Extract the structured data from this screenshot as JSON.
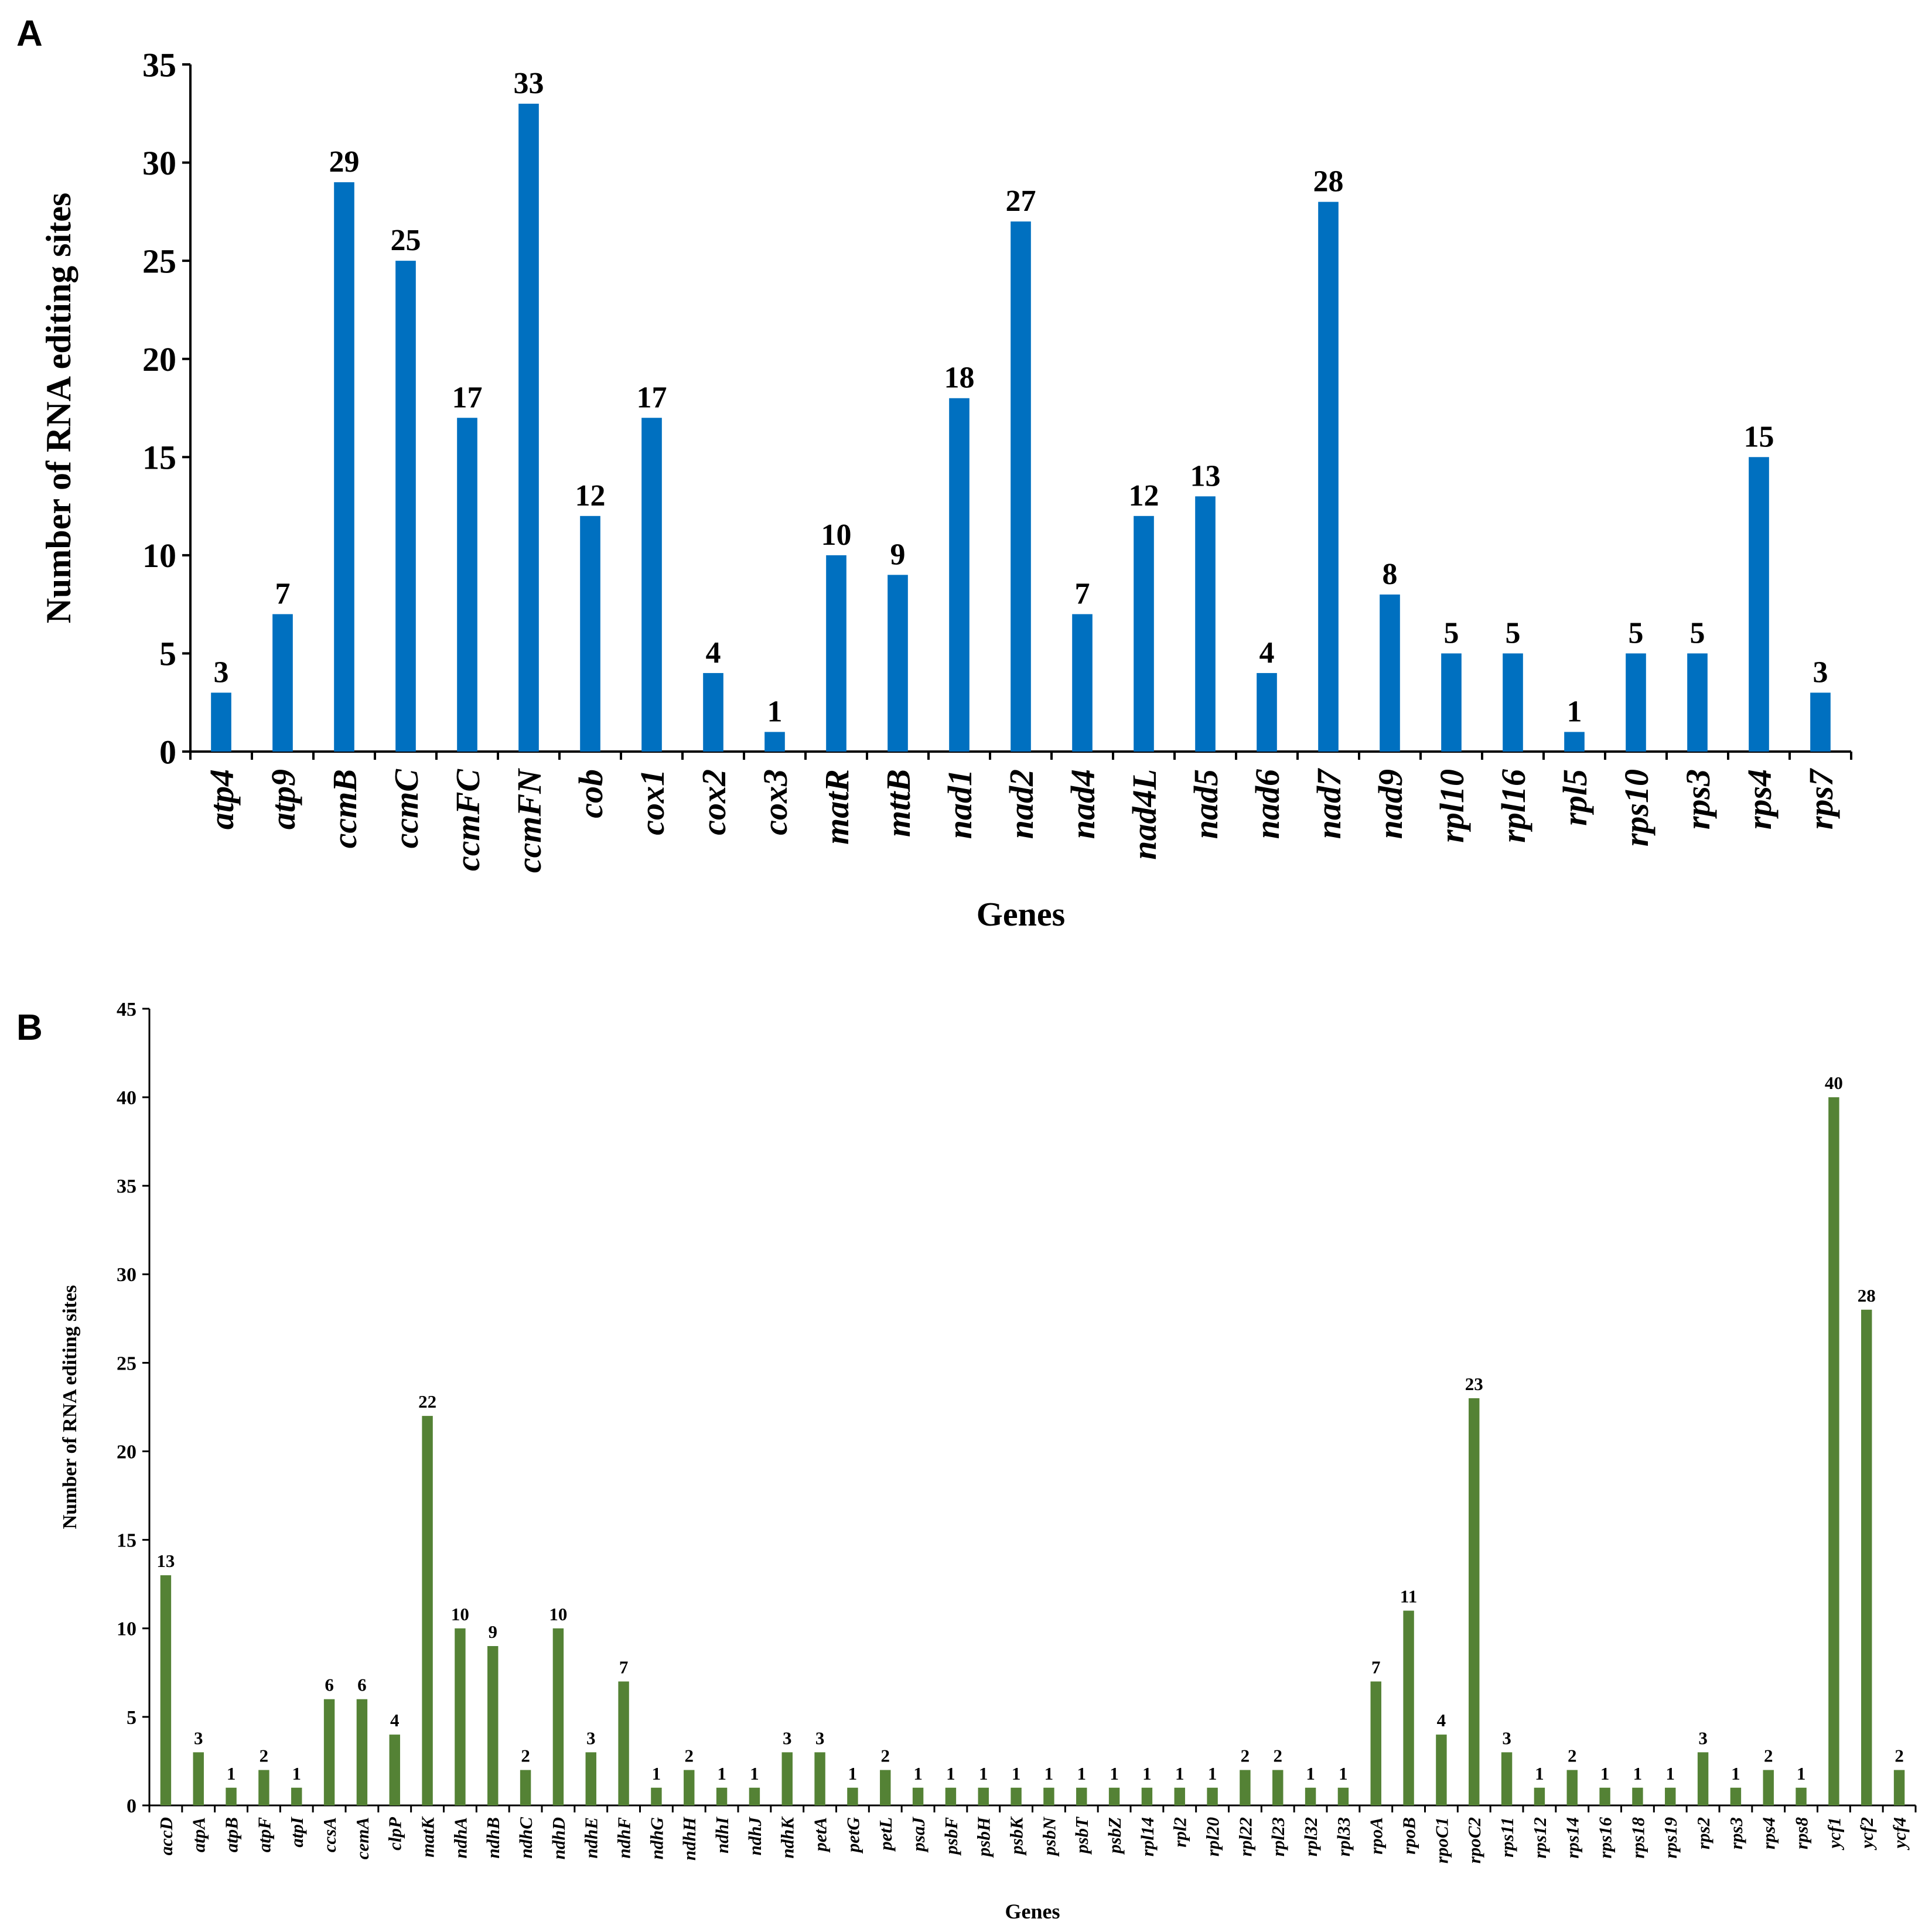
{
  "chart_data": [
    {
      "panel": "A",
      "type": "bar",
      "title": "",
      "xlabel": "Genes",
      "ylabel": "Number  of RNA  editing sites",
      "ylim": [
        0,
        35
      ],
      "yticks": [
        0,
        5,
        10,
        15,
        20,
        25,
        30,
        35
      ],
      "color": "#0070C0",
      "categories": [
        "atp4",
        "atp9",
        "ccmB",
        "ccmC",
        "ccmFC",
        "ccmFN",
        "cob",
        "cox1",
        "cox2",
        "cox3",
        "matR",
        "mttB",
        "nad1",
        "nad2",
        "nad4",
        "nad4L",
        "nad5",
        "nad6",
        "nad7",
        "nad9",
        "rpl10",
        "rpl16",
        "rpl5",
        "rps10",
        "rps3",
        "rps4",
        "rps7"
      ],
      "values": [
        3,
        7,
        29,
        25,
        17,
        33,
        12,
        17,
        4,
        1,
        10,
        9,
        18,
        27,
        7,
        12,
        13,
        4,
        28,
        8,
        5,
        5,
        1,
        5,
        5,
        15,
        3
      ]
    },
    {
      "panel": "B",
      "type": "bar",
      "title": "",
      "xlabel": "Genes",
      "ylabel": "Number  of RNA editing sites",
      "ylim": [
        0,
        45
      ],
      "yticks": [
        0,
        5,
        10,
        15,
        20,
        25,
        30,
        35,
        40,
        45
      ],
      "color": "#548235",
      "categories": [
        "accD",
        "atpA",
        "atpB",
        "atpF",
        "atpI",
        "ccsA",
        "cemA",
        "clpP",
        "matK",
        "ndhA",
        "ndhB",
        "ndhC",
        "ndhD",
        "ndhE",
        "ndhF",
        "ndhG",
        "ndhH",
        "ndhI",
        "ndhJ",
        "ndhK",
        "petA",
        "petG",
        "petL",
        "psaJ",
        "psbF",
        "psbH",
        "psbK",
        "psbN",
        "psbT",
        "psbZ",
        "rpl14",
        "rpl2",
        "rpl20",
        "rpl22",
        "rpl23",
        "rpl32",
        "rpl33",
        "rpoA",
        "rpoB",
        "rpoC1",
        "rpoC2",
        "rps11",
        "rps12",
        "rps14",
        "rps16",
        "rps18",
        "rps19",
        "rps2",
        "rps3",
        "rps4",
        "rps8",
        "ycf1",
        "ycf2",
        "ycf4"
      ],
      "values": [
        13,
        3,
        1,
        2,
        1,
        6,
        6,
        4,
        22,
        10,
        9,
        2,
        10,
        3,
        7,
        1,
        2,
        1,
        1,
        3,
        3,
        1,
        2,
        1,
        1,
        1,
        1,
        1,
        1,
        1,
        1,
        1,
        1,
        2,
        2,
        1,
        1,
        7,
        11,
        4,
        23,
        3,
        1,
        2,
        1,
        1,
        1,
        3,
        1,
        2,
        1,
        40,
        28,
        2
      ]
    }
  ]
}
